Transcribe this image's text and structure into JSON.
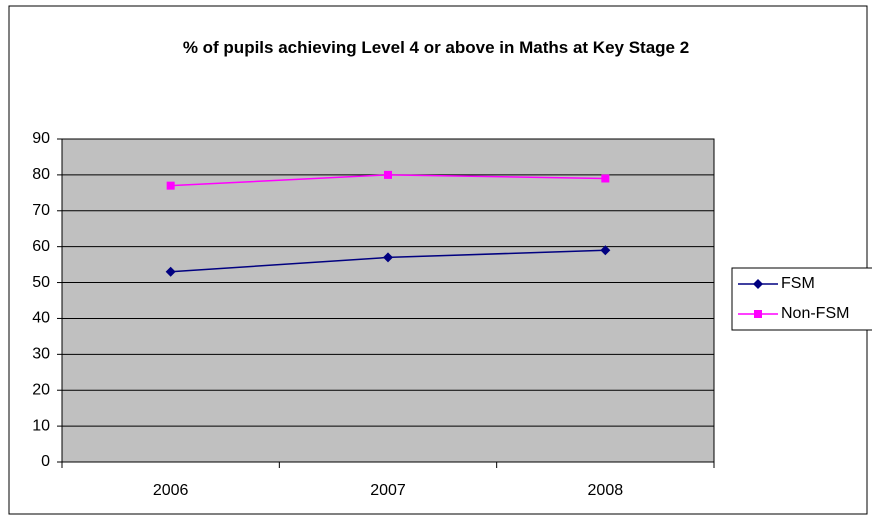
{
  "chart_data": {
    "type": "line",
    "title": "% of pupils achieving Level 4 or above in Maths at Key Stage 2",
    "categories": [
      "2006",
      "2007",
      "2008"
    ],
    "series": [
      {
        "name": "FSM",
        "color": "#000080",
        "marker": "diamond",
        "values": [
          53,
          57,
          59
        ]
      },
      {
        "name": "Non-FSM",
        "color": "#ff00ff",
        "marker": "square",
        "values": [
          77,
          80,
          79
        ]
      }
    ],
    "ylim": [
      0,
      90
    ],
    "yticks": [
      0,
      10,
      20,
      30,
      40,
      50,
      60,
      70,
      80,
      90
    ],
    "grid": true,
    "plot_background": "#c0c0c0",
    "legend": "right"
  }
}
